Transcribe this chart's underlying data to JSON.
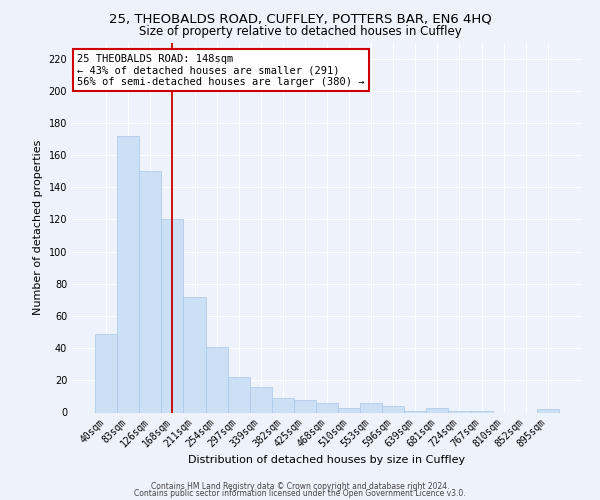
{
  "title": "25, THEOBALDS ROAD, CUFFLEY, POTTERS BAR, EN6 4HQ",
  "subtitle": "Size of property relative to detached houses in Cuffley",
  "xlabel": "Distribution of detached houses by size in Cuffley",
  "ylabel": "Number of detached properties",
  "bar_color": "#cce0f5",
  "bar_edge_color": "#a8c8e8",
  "vline_color": "#cc0000",
  "vline_x": 3.0,
  "categories": [
    "40sqm",
    "83sqm",
    "126sqm",
    "168sqm",
    "211sqm",
    "254sqm",
    "297sqm",
    "339sqm",
    "382sqm",
    "425sqm",
    "468sqm",
    "510sqm",
    "553sqm",
    "596sqm",
    "639sqm",
    "681sqm",
    "724sqm",
    "767sqm",
    "810sqm",
    "852sqm",
    "895sqm"
  ],
  "values": [
    49,
    172,
    150,
    120,
    72,
    41,
    22,
    16,
    9,
    8,
    6,
    3,
    6,
    4,
    1,
    3,
    1,
    1,
    0,
    0,
    2
  ],
  "ylim": [
    0,
    230
  ],
  "yticks": [
    0,
    20,
    40,
    60,
    80,
    100,
    120,
    140,
    160,
    180,
    200,
    220
  ],
  "annotation_text": "25 THEOBALDS ROAD: 148sqm\n← 43% of detached houses are smaller (291)\n56% of semi-detached houses are larger (380) →",
  "annotation_box_facecolor": "#ffffff",
  "annotation_box_edgecolor": "#cc0000",
  "footer1": "Contains HM Land Registry data © Crown copyright and database right 2024.",
  "footer2": "Contains public sector information licensed under the Open Government Licence v3.0.",
  "background_color": "#eef2fa",
  "grid_color": "#ffffff",
  "title_fontsize": 9.5,
  "subtitle_fontsize": 8.5,
  "ylabel_fontsize": 8,
  "xlabel_fontsize": 8,
  "tick_fontsize": 7,
  "annotation_fontsize": 7.5,
  "footer_fontsize": 5.5
}
